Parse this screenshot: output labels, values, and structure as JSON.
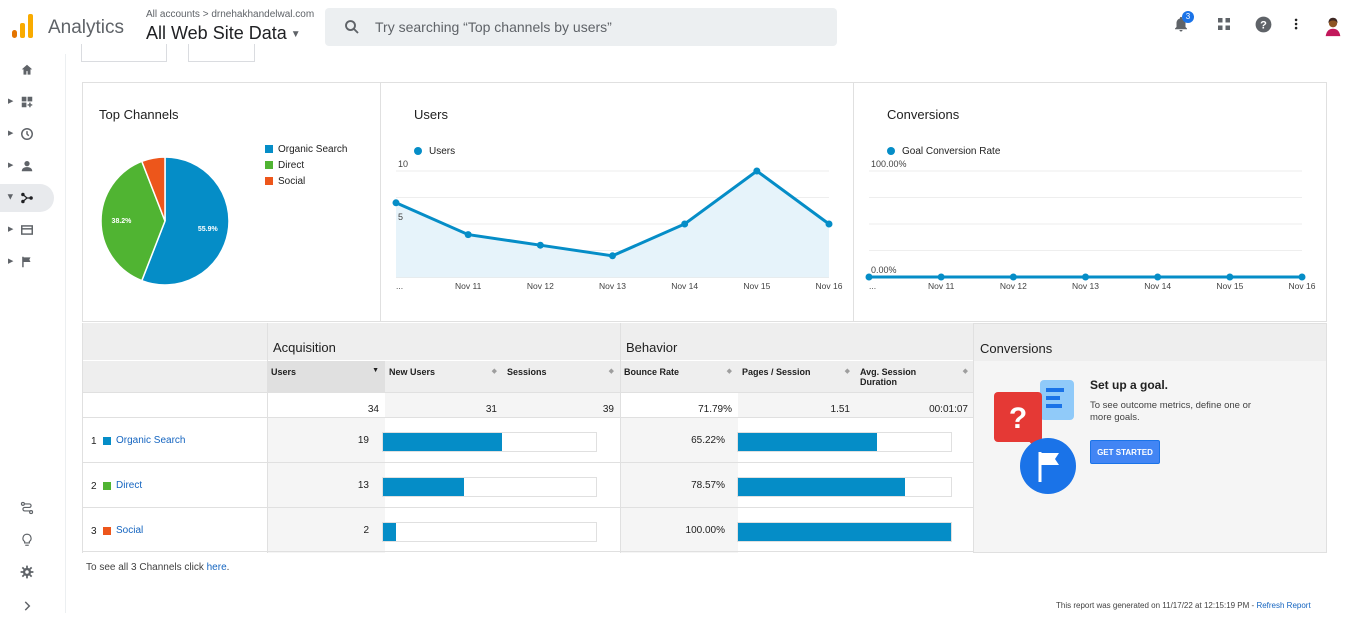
{
  "header": {
    "app_name": "Analytics",
    "account_crumb": "All accounts > drnehakhandelwal.com",
    "view_name": "All Web Site Data",
    "search_placeholder": "Try searching “Top channels by users”",
    "notification_count": "3",
    "icons": [
      "notifications-icon",
      "apps-grid-icon",
      "help-icon",
      "more-vert-icon",
      "avatar"
    ]
  },
  "sidebar": {
    "items": [
      "home-icon",
      "customization-icon",
      "realtime-icon",
      "audience-icon",
      "acquisition-icon",
      "behavior-icon",
      "conversions-icon"
    ],
    "bottom_items": [
      "attribution-icon",
      "discover-icon",
      "admin-gear-icon",
      "expand-icon"
    ]
  },
  "colors": {
    "organic": "#058dc7",
    "direct": "#50b432",
    "social": "#ed561b",
    "line": "#058dc7"
  },
  "top_channels": {
    "title": "Top Channels",
    "legend": [
      "Organic Search",
      "Direct",
      "Social"
    ],
    "slice_labels": [
      "55.9%",
      "38.2%",
      ""
    ]
  },
  "users_card": {
    "title": "Users",
    "legend": "Users",
    "y_ticks": [
      "10",
      "5"
    ],
    "x_labels": [
      "...",
      "Nov 11",
      "Nov 12",
      "Nov 13",
      "Nov 14",
      "Nov 15",
      "Nov 16"
    ]
  },
  "conversions_card": {
    "title": "Conversions",
    "legend": "Goal Conversion Rate",
    "y_ticks": [
      "100.00%",
      "0.00%"
    ],
    "x_labels": [
      "...",
      "Nov 11",
      "Nov 12",
      "Nov 13",
      "Nov 14",
      "Nov 15",
      "Nov 16"
    ]
  },
  "chart_data": [
    {
      "type": "pie",
      "title": "Top Channels",
      "categories": [
        "Organic Search",
        "Direct",
        "Social"
      ],
      "values": [
        55.9,
        38.2,
        5.9
      ]
    },
    {
      "type": "area",
      "title": "Users",
      "x": [
        "...",
        "Nov 11",
        "Nov 12",
        "Nov 13",
        "Nov 14",
        "Nov 15",
        "Nov 16"
      ],
      "series": [
        {
          "name": "Users",
          "values": [
            7,
            4,
            3,
            2,
            5,
            10,
            5
          ]
        }
      ],
      "ylim": [
        0,
        10
      ]
    },
    {
      "type": "line",
      "title": "Conversions",
      "x": [
        "...",
        "Nov 11",
        "Nov 12",
        "Nov 13",
        "Nov 14",
        "Nov 15",
        "Nov 16"
      ],
      "series": [
        {
          "name": "Goal Conversion Rate",
          "values": [
            0,
            0,
            0,
            0,
            0,
            0,
            0
          ]
        }
      ],
      "ylim": [
        0,
        100
      ]
    }
  ],
  "table": {
    "groups": {
      "acquisition": "Acquisition",
      "behavior": "Behavior",
      "conversions": "Conversions"
    },
    "columns": {
      "users": "Users",
      "new_users": "New Users",
      "sessions": "Sessions",
      "bounce_rate": "Bounce Rate",
      "pages_session": "Pages / Session",
      "avg_duration": "Avg. Session Duration"
    },
    "totals": {
      "users": "34",
      "new_users": "31",
      "sessions": "39",
      "bounce_rate": "71.79%",
      "pages_session": "1.51",
      "avg_duration": "00:01:07"
    },
    "rows": [
      {
        "idx": "1",
        "name": "Organic Search",
        "users": "19",
        "users_share": 0.559,
        "bounce_rate": "65.22%",
        "bounce_share": 0.6522
      },
      {
        "idx": "2",
        "name": "Direct",
        "users": "13",
        "users_share": 0.382,
        "bounce_rate": "78.57%",
        "bounce_share": 0.7857
      },
      {
        "idx": "3",
        "name": "Social",
        "users": "2",
        "users_share": 0.059,
        "bounce_rate": "100.00%",
        "bounce_share": 1.0
      }
    ]
  },
  "goal": {
    "title": "Set up a goal.",
    "description": "To see outcome metrics, define one or more goals.",
    "button": "GET STARTED"
  },
  "footer": {
    "see_all_prefix": "To see all 3 Channels click",
    "see_all_link": "here",
    "see_all_suffix": ".",
    "generated": "This report was generated on 11/17/22 at 12:15:19 PM -",
    "refresh": "Refresh Report"
  }
}
